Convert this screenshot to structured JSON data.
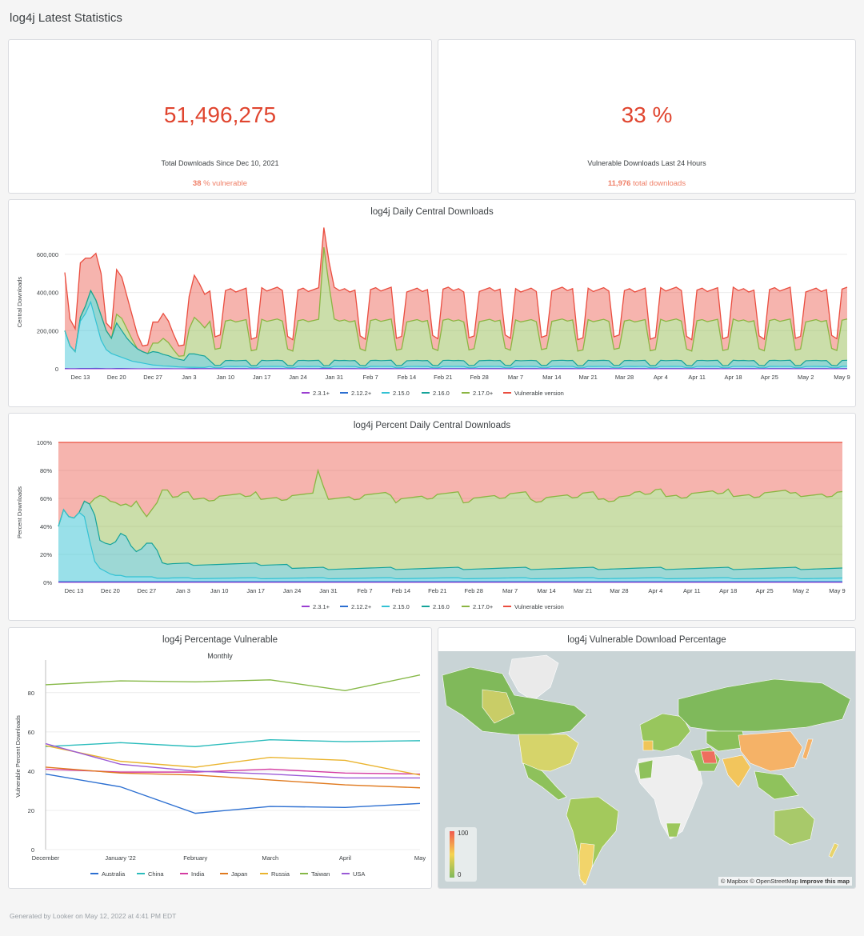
{
  "page": {
    "title": "log4j Latest Statistics",
    "footer": "Generated by Looker on May 12, 2022 at 4:41 PM EDT"
  },
  "kpi_total": {
    "value": "51,496,275",
    "label": "Total Downloads Since Dec 10, 2021",
    "sub_value": "38",
    "sub_text": " % vulnerable"
  },
  "kpi_24h": {
    "value": "33 %",
    "label": "Vulnerable Downloads Last 24 Hours",
    "sub_value": "11,976",
    "sub_text": " total downloads"
  },
  "colors": {
    "vulnerable": "#ea4d3f",
    "v217": "#8bb542",
    "v216": "#15a39a",
    "v215": "#33c2d4",
    "v2122": "#2c6fd1",
    "v231": "#9a3ed1",
    "australia": "#2c6fd1",
    "china": "#2bbcbc",
    "india": "#d43ca2",
    "japan": "#e07a1f",
    "russia": "#eab42e",
    "taiwan": "#86b847",
    "usa": "#9a5ad6"
  },
  "map": {
    "title": "log4j Vulnerable Download Percentage",
    "scale_max": "100",
    "scale_min": "0",
    "attribution": "© Mapbox © OpenStreetMap",
    "improve": "Improve this map"
  },
  "chart_data": [
    {
      "type": "area",
      "title": "log4j Daily Central Downloads",
      "ylabel": "Central Downloads",
      "ylim": [
        0,
        700000
      ],
      "yticks": [
        0,
        200000,
        400000,
        600000
      ],
      "ytick_labels": [
        "0",
        "200,000",
        "400,000",
        "600,000"
      ],
      "x_tick_labels": [
        "Dec 13",
        "Dec 20",
        "Dec 27",
        "Jan 3",
        "Jan 10",
        "Jan 17",
        "Jan 24",
        "Jan 31",
        "Feb 7",
        "Feb 14",
        "Feb 21",
        "Feb 28",
        "Mar 7",
        "Mar 14",
        "Mar 21",
        "Mar 28",
        "Apr 4",
        "Apr 11",
        "Apr 18",
        "Apr 25",
        "May 2",
        "May 9"
      ],
      "legend": [
        "2.3.1+",
        "2.12.2+",
        "2.15.0",
        "2.16.0",
        "2.17.0+",
        "Vulnerable version"
      ],
      "total_weekday": 415000,
      "total_weekend": 165000,
      "v217_share": 0.61,
      "v216_share": 0.075,
      "v215_share": 0.03,
      "v2122_share": 0.004,
      "early_totals": [
        505000,
        260000,
        210000,
        555000,
        580000,
        580000,
        605000,
        500000,
        240000,
        210000,
        520000,
        480000,
        380000,
        280000,
        180000,
        120000,
        125000,
        245000,
        245000,
        290000,
        250000,
        180000,
        120000,
        125000,
        380000,
        490000,
        445000,
        390000
      ],
      "early_v215": [
        200000,
        120000,
        90000,
        250000,
        290000,
        350000,
        250000,
        150000,
        100000,
        80000,
        70000,
        60000,
        50000,
        40000,
        35000,
        30000,
        25000,
        20000,
        18000,
        15000,
        14000,
        12000,
        10000,
        9000,
        8000,
        8000,
        7000,
        7000
      ],
      "early_v216": [
        0,
        0,
        0,
        20000,
        40000,
        60000,
        110000,
        130000,
        100000,
        80000,
        170000,
        140000,
        110000,
        90000,
        70000,
        60000,
        55000,
        70000,
        68000,
        60000,
        55000,
        45000,
        40000,
        35000,
        70000,
        70000,
        65000,
        60000
      ],
      "spike": {
        "index": 50,
        "total": 740000,
        "v217": 620000
      }
    },
    {
      "type": "area",
      "title": "log4j Percent Daily Central Downloads",
      "ylabel": "Percent Downloads",
      "ylim": [
        0,
        100
      ],
      "yticks": [
        0,
        20,
        40,
        60,
        80,
        100
      ],
      "ytick_labels": [
        "0%",
        "20%",
        "40%",
        "60%",
        "80%",
        "100%"
      ],
      "x_tick_labels": [
        "Dec 13",
        "Dec 20",
        "Dec 27",
        "Jan 3",
        "Jan 10",
        "Jan 17",
        "Jan 24",
        "Jan 31",
        "Feb 7",
        "Feb 14",
        "Feb 21",
        "Feb 28",
        "Mar 7",
        "Mar 14",
        "Mar 21",
        "Mar 28",
        "Apr 4",
        "Apr 11",
        "Apr 18",
        "Apr 25",
        "May 2",
        "May 9"
      ],
      "legend": [
        "2.3.1+",
        "2.12.2+",
        "2.15.0",
        "2.16.0",
        "2.17.0+",
        "Vulnerable version"
      ],
      "early_cum_top": [
        40,
        52,
        47,
        46,
        50,
        58,
        56,
        60,
        62,
        61,
        58,
        57,
        55,
        56,
        54,
        58,
        52,
        47,
        52,
        57,
        66,
        66
      ],
      "early_teal_top": [
        40,
        52,
        47,
        46,
        50,
        58,
        56,
        48,
        30,
        28,
        27,
        29,
        35,
        33,
        26,
        22,
        24,
        28,
        28,
        23,
        14,
        13
      ],
      "early_blue_top": [
        40,
        52,
        47,
        46,
        50,
        47,
        30,
        15,
        10,
        8,
        6,
        5,
        5,
        4,
        4,
        4,
        4,
        4,
        4,
        3,
        3,
        3
      ],
      "steady_cum_top": 62,
      "steady_teal_top": 10,
      "steady_blue_top": 3,
      "spike_index": 50,
      "spike_value": 80
    },
    {
      "type": "line",
      "title": "log4j Percentage Vulnerable",
      "subtitle": "Monthly",
      "ylabel": "Vulnerable Percent Downloads",
      "ylim": [
        0,
        95
      ],
      "yticks": [
        0,
        20,
        40,
        60,
        80
      ],
      "categories": [
        "December",
        "January '22",
        "February",
        "March",
        "April",
        "May"
      ],
      "series": [
        {
          "name": "Australia",
          "values": [
            38.5,
            32,
            18.5,
            22,
            21.5,
            23.5
          ]
        },
        {
          "name": "China",
          "values": [
            52.5,
            54.5,
            52.5,
            56,
            55,
            55.5
          ]
        },
        {
          "name": "India",
          "values": [
            41,
            39.5,
            39.5,
            41,
            39,
            38.5
          ]
        },
        {
          "name": "Japan",
          "values": [
            42,
            39,
            38,
            35.5,
            33,
            31.5
          ]
        },
        {
          "name": "Russia",
          "values": [
            53,
            45,
            42,
            47,
            45.5,
            38
          ]
        },
        {
          "name": "Taiwan",
          "values": [
            84,
            86,
            85.5,
            86.5,
            81,
            89
          ]
        },
        {
          "name": "USA",
          "values": [
            54,
            43.5,
            40,
            38.5,
            36.5,
            36.5
          ]
        }
      ]
    }
  ]
}
